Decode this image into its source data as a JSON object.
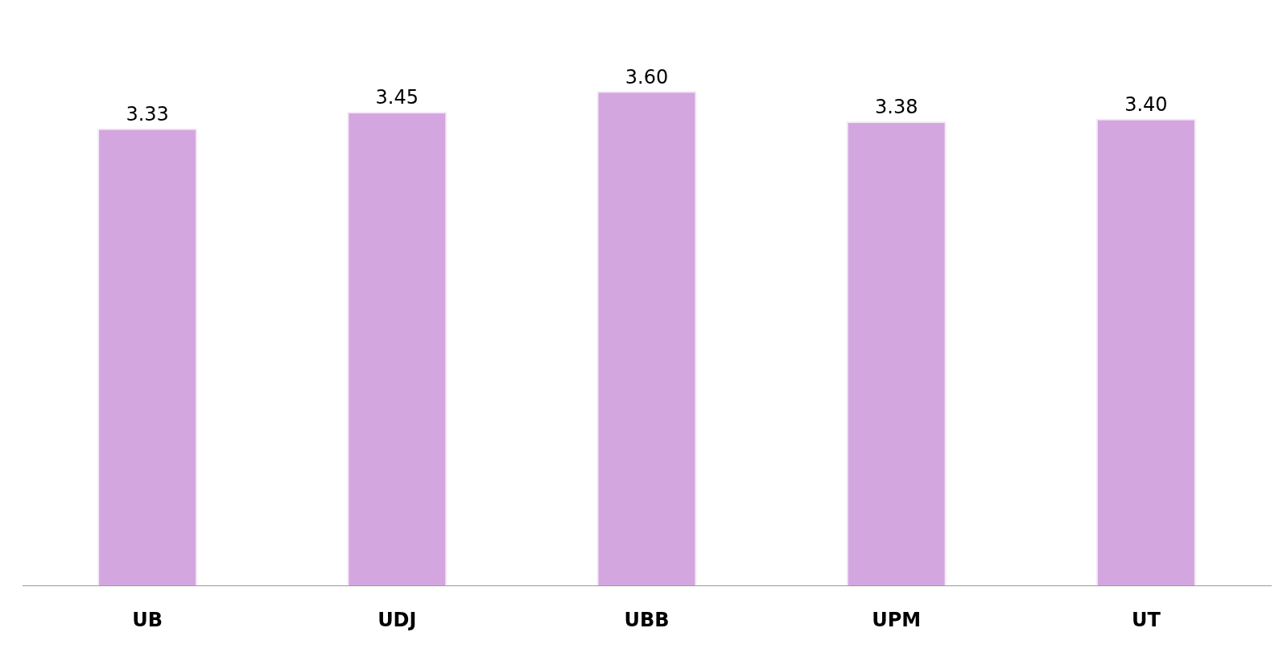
{
  "chart_data": {
    "type": "bar",
    "categories": [
      "UB",
      "UDJ",
      "UBB",
      "UPM",
      "UT"
    ],
    "values": [
      3.33,
      3.45,
      3.6,
      3.38,
      3.4
    ],
    "value_labels": [
      "3.33",
      "3.45",
      "3.60",
      "3.38",
      "3.40"
    ],
    "color": "#d4a6e0",
    "tick_labels": "x",
    "grid": false,
    "legend": false
  }
}
